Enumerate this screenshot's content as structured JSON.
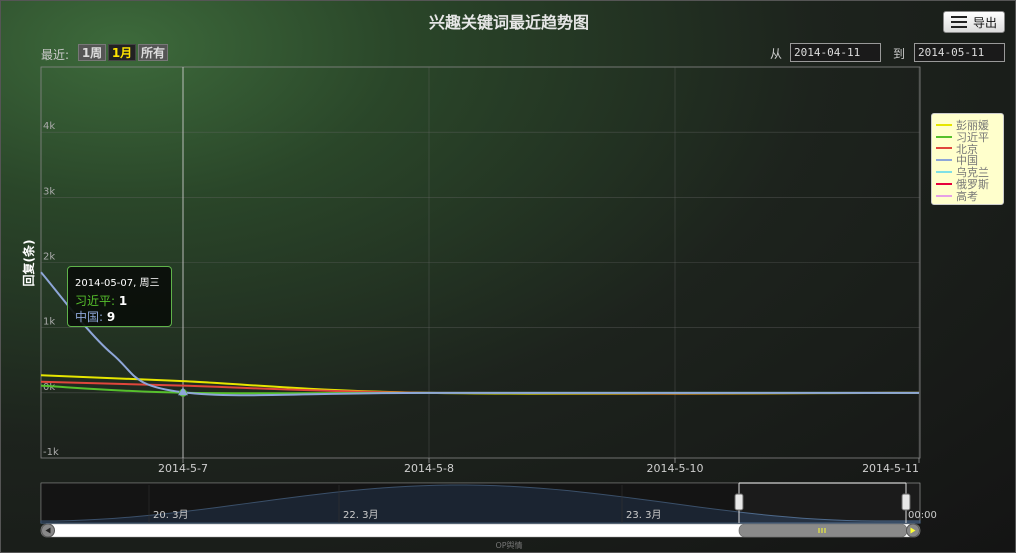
{
  "title": "兴趣关键词最近趋势图",
  "export_label": "导出",
  "range_selector": {
    "label": "最近:",
    "buttons": [
      {
        "label": "1周",
        "active": false
      },
      {
        "label": "1月",
        "active": true
      },
      {
        "label": "所有",
        "active": false
      }
    ]
  },
  "date_range": {
    "from_label": "从",
    "from_value": "2014-04-11",
    "to_label": "到",
    "to_value": "2014-05-11"
  },
  "tooltip": {
    "date": "2014-05-07, 周三",
    "rows": [
      {
        "name": "习近平",
        "value": "1",
        "color": "#56c02c"
      },
      {
        "name": "中国",
        "value": "9",
        "color": "#8ea6d8"
      }
    ]
  },
  "navigator": {
    "tick_labels": [
      "20. 3月",
      "22. 3月",
      "23. 3月",
      "00:00"
    ]
  },
  "credit": "OP舆情",
  "chart_data": {
    "type": "line",
    "title": "兴趣关键词最近趋势图",
    "ylabel": "回复(条)",
    "xlabel": "",
    "x_ticks": [
      "2014-5-7",
      "2014-5-8",
      "2014-5-10",
      "2014-5-11"
    ],
    "y_ticks": [
      "-1k",
      "0k",
      "1k",
      "2k",
      "3k",
      "4k"
    ],
    "ylim": [
      -1000,
      5000
    ],
    "grid": true,
    "legend_position": "right",
    "series": [
      {
        "name": "彭丽媛",
        "color": "#e6e600",
        "values": [
          {
            "x": "2014-5-6",
            "y": 270
          },
          {
            "x": "2014-5-7",
            "y": 180
          },
          {
            "x": "2014-5-8",
            "y": 0
          },
          {
            "x": "2014-5-11",
            "y": 0
          }
        ]
      },
      {
        "name": "习近平",
        "color": "#56c02c",
        "values": [
          {
            "x": "2014-5-6",
            "y": 110
          },
          {
            "x": "2014-5-7",
            "y": 1
          },
          {
            "x": "2014-5-8",
            "y": 0
          },
          {
            "x": "2014-5-11",
            "y": 0
          }
        ]
      },
      {
        "name": "北京",
        "color": "#e0463c",
        "values": [
          {
            "x": "2014-5-6",
            "y": 170
          },
          {
            "x": "2014-5-7",
            "y": 110
          },
          {
            "x": "2014-5-8",
            "y": 0
          },
          {
            "x": "2014-5-11",
            "y": 0
          }
        ]
      },
      {
        "name": "中国",
        "color": "#8ea6d8",
        "values": [
          {
            "x": "2014-5-6",
            "y": 1850
          },
          {
            "x": "2014-5-6.5",
            "y": 600
          },
          {
            "x": "2014-5-7",
            "y": 9
          },
          {
            "x": "2014-5-8",
            "y": 0
          },
          {
            "x": "2014-5-11",
            "y": 0
          }
        ]
      },
      {
        "name": "乌克兰",
        "color": "#7fe0e6",
        "values": []
      },
      {
        "name": "俄罗斯",
        "color": "#e6003c",
        "values": []
      },
      {
        "name": "高考",
        "color": "#e6a0e6",
        "values": []
      }
    ]
  }
}
